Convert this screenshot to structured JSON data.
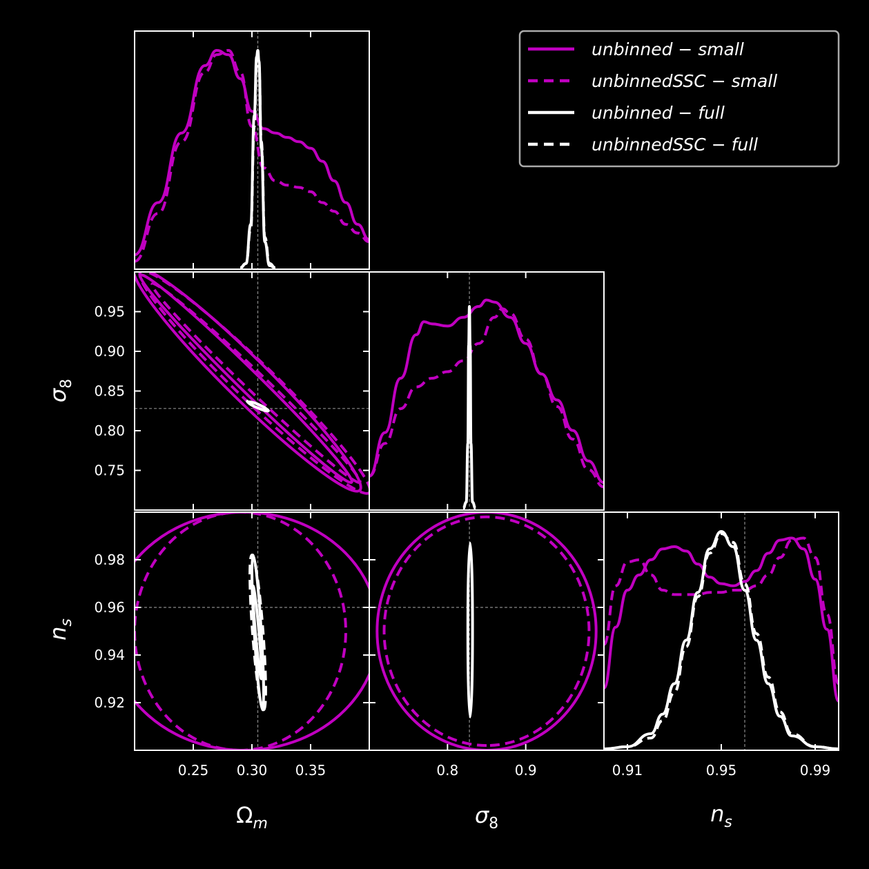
{
  "chart_data": {
    "type": "corner",
    "colors": {
      "small": "#c000c0",
      "full": "#ffffff",
      "background": "#000000",
      "reference": "#8a8a8a"
    },
    "parameters": [
      {
        "key": "om",
        "label": "Ω",
        "sub": "m",
        "range": [
          0.2,
          0.4
        ],
        "truth": 0.305,
        "ticks": [
          0.25,
          0.3,
          0.35
        ],
        "tick_labels": [
          "0.25",
          "0.30",
          "0.35"
        ]
      },
      {
        "key": "s8",
        "label": "σ",
        "sub": "8",
        "range": [
          0.7,
          1.0
        ],
        "truth": 0.828,
        "ticks": [
          0.75,
          0.8,
          0.85,
          0.9,
          0.95
        ],
        "tick_labels": [
          "0.75",
          "0.80",
          "0.85",
          "0.90",
          "0.95"
        ],
        "ticks_x": [
          0.8,
          0.9
        ],
        "tick_labels_x": [
          "0.8",
          "0.9"
        ]
      },
      {
        "key": "ns",
        "label": "n",
        "sub": "s",
        "range": [
          0.9,
          1.0
        ],
        "truth": 0.96,
        "ticks": [
          0.92,
          0.94,
          0.96,
          0.98
        ],
        "tick_labels": [
          "0.92",
          "0.94",
          "0.96",
          "0.98"
        ],
        "ticks_x": [
          0.91,
          0.95,
          0.99
        ],
        "tick_labels_x": [
          "0.91",
          "0.95",
          "0.99"
        ]
      }
    ],
    "legend": [
      {
        "label": "unbinned − small",
        "color": "small",
        "dash": false
      },
      {
        "label": "unbinnedSSC − small",
        "color": "small",
        "dash": true
      },
      {
        "label": "unbinned − full",
        "color": "full",
        "dash": false
      },
      {
        "label": "unbinnedSSC − full",
        "color": "full",
        "dash": true
      }
    ],
    "marginals": {
      "om": [
        {
          "name": "unbinned − small",
          "color": "small",
          "dash": false,
          "x": [
            0.2,
            0.22,
            0.24,
            0.26,
            0.27,
            0.28,
            0.29,
            0.3,
            0.31,
            0.32,
            0.33,
            0.34,
            0.35,
            0.36,
            0.37,
            0.38,
            0.39,
            0.4
          ],
          "y": [
            0.06,
            0.3,
            0.62,
            0.93,
            1.0,
            0.98,
            0.87,
            0.72,
            0.64,
            0.62,
            0.6,
            0.58,
            0.55,
            0.49,
            0.4,
            0.3,
            0.2,
            0.13
          ]
        },
        {
          "name": "unbinnedSSC − small",
          "color": "small",
          "dash": true,
          "x": [
            0.2,
            0.22,
            0.24,
            0.26,
            0.27,
            0.28,
            0.29,
            0.3,
            0.31,
            0.32,
            0.33,
            0.34,
            0.35,
            0.36,
            0.37,
            0.38,
            0.39,
            0.4
          ],
          "y": [
            0.03,
            0.25,
            0.58,
            0.9,
            0.98,
            1.0,
            0.9,
            0.65,
            0.46,
            0.4,
            0.38,
            0.37,
            0.35,
            0.3,
            0.26,
            0.2,
            0.16,
            0.12
          ]
        },
        {
          "name": "unbinned − full",
          "color": "full",
          "dash": false,
          "x": [
            0.29,
            0.295,
            0.299,
            0.302,
            0.304,
            0.305,
            0.306,
            0.308,
            0.311,
            0.315,
            0.32
          ],
          "y": [
            0.0,
            0.02,
            0.2,
            0.7,
            0.97,
            1.0,
            0.95,
            0.55,
            0.12,
            0.01,
            0.0
          ]
        },
        {
          "name": "unbinnedSSC − full",
          "color": "full",
          "dash": true,
          "x": [
            0.29,
            0.295,
            0.299,
            0.302,
            0.304,
            0.305,
            0.306,
            0.308,
            0.311,
            0.315,
            0.32
          ],
          "y": [
            0.0,
            0.02,
            0.18,
            0.65,
            0.93,
            0.98,
            0.93,
            0.58,
            0.14,
            0.02,
            0.0
          ]
        }
      ],
      "s8": [
        {
          "name": "unbinned − small",
          "color": "small",
          "dash": false,
          "x": [
            0.7,
            0.72,
            0.74,
            0.76,
            0.77,
            0.78,
            0.8,
            0.82,
            0.84,
            0.85,
            0.86,
            0.88,
            0.9,
            0.92,
            0.94,
            0.96,
            0.98,
            1.0
          ],
          "y": [
            0.15,
            0.35,
            0.6,
            0.8,
            0.86,
            0.85,
            0.84,
            0.88,
            0.93,
            0.96,
            0.95,
            0.88,
            0.76,
            0.62,
            0.5,
            0.36,
            0.22,
            0.12
          ]
        },
        {
          "name": "unbinnedSSC − small",
          "color": "small",
          "dash": true,
          "x": [
            0.7,
            0.72,
            0.74,
            0.76,
            0.78,
            0.8,
            0.82,
            0.84,
            0.86,
            0.87,
            0.88,
            0.9,
            0.92,
            0.94,
            0.96,
            0.98,
            1.0
          ],
          "y": [
            0.15,
            0.3,
            0.46,
            0.56,
            0.6,
            0.63,
            0.68,
            0.76,
            0.88,
            0.92,
            0.9,
            0.78,
            0.62,
            0.47,
            0.32,
            0.18,
            0.1
          ]
        },
        {
          "name": "unbinned − full",
          "color": "full",
          "dash": false,
          "x": [
            0.82,
            0.824,
            0.826,
            0.827,
            0.828,
            0.829,
            0.83,
            0.832,
            0.836
          ],
          "y": [
            0.0,
            0.03,
            0.3,
            0.75,
            0.93,
            0.75,
            0.3,
            0.03,
            0.0
          ]
        }
      ],
      "ns": [
        {
          "name": "unbinned − small",
          "color": "small",
          "dash": false,
          "x": [
            0.9,
            0.905,
            0.91,
            0.915,
            0.92,
            0.925,
            0.93,
            0.935,
            0.94,
            0.945,
            0.95,
            0.955,
            0.96,
            0.965,
            0.97,
            0.975,
            0.98,
            0.985,
            0.99,
            0.995,
            1.0
          ],
          "y": [
            0.28,
            0.56,
            0.73,
            0.8,
            0.87,
            0.92,
            0.93,
            0.91,
            0.85,
            0.79,
            0.76,
            0.75,
            0.77,
            0.82,
            0.9,
            0.96,
            0.97,
            0.92,
            0.78,
            0.55,
            0.22
          ]
        },
        {
          "name": "unbinnedSSC − small",
          "color": "small",
          "dash": true,
          "x": [
            0.9,
            0.905,
            0.91,
            0.915,
            0.92,
            0.925,
            0.93,
            0.935,
            0.94,
            0.945,
            0.95,
            0.955,
            0.96,
            0.965,
            0.97,
            0.975,
            0.98,
            0.985,
            0.99,
            0.995,
            1.0
          ],
          "y": [
            0.48,
            0.75,
            0.86,
            0.87,
            0.8,
            0.73,
            0.71,
            0.71,
            0.71,
            0.72,
            0.72,
            0.73,
            0.73,
            0.75,
            0.8,
            0.88,
            0.96,
            0.97,
            0.88,
            0.62,
            0.3
          ]
        },
        {
          "name": "unbinned − full",
          "color": "full",
          "dash": false,
          "x": [
            0.9,
            0.91,
            0.92,
            0.925,
            0.93,
            0.935,
            0.94,
            0.945,
            0.95,
            0.955,
            0.96,
            0.965,
            0.97,
            0.975,
            0.98,
            0.99,
            1.0
          ],
          "y": [
            0.0,
            0.01,
            0.07,
            0.16,
            0.3,
            0.5,
            0.72,
            0.92,
            1.0,
            0.93,
            0.73,
            0.5,
            0.3,
            0.15,
            0.06,
            0.01,
            0.0
          ]
        },
        {
          "name": "unbinnedSSC − full",
          "color": "full",
          "dash": true,
          "x": [
            0.9,
            0.91,
            0.92,
            0.925,
            0.93,
            0.935,
            0.94,
            0.945,
            0.95,
            0.955,
            0.96,
            0.965,
            0.97,
            0.975,
            0.98,
            0.99,
            1.0
          ],
          "y": [
            0.0,
            0.01,
            0.05,
            0.13,
            0.26,
            0.47,
            0.7,
            0.9,
            0.99,
            0.95,
            0.76,
            0.53,
            0.33,
            0.17,
            0.07,
            0.01,
            0.0
          ]
        }
      ]
    },
    "contours_2d": [
      {
        "x": "om",
        "y": "s8",
        "ellipses": [
          {
            "color": "small",
            "dash": false,
            "center": [
              0.305,
              0.857
            ],
            "endpoints": [
              [
                0.205,
                0.996
              ],
              [
                0.385,
                0.735
              ]
            ],
            "width_y": 0.022
          },
          {
            "color": "small",
            "dash": false,
            "center": [
              0.305,
              0.857
            ],
            "endpoints": [
              [
                0.2,
                1.005
              ],
              [
                0.392,
                0.725
              ]
            ],
            "width_y": 0.044
          },
          {
            "color": "small",
            "dash": true,
            "center": [
              0.31,
              0.85
            ],
            "endpoints": [
              [
                0.215,
                0.985
              ],
              [
                0.392,
                0.735
              ]
            ],
            "width_y": 0.02
          },
          {
            "color": "small",
            "dash": true,
            "center": [
              0.31,
              0.85
            ],
            "endpoints": [
              [
                0.205,
                1.0
              ],
              [
                0.4,
                0.722
              ]
            ],
            "width_y": 0.04
          },
          {
            "color": "full",
            "dash": false,
            "center": [
              0.305,
              0.831
            ],
            "endpoints": [
              [
                0.297,
                0.836
              ],
              [
                0.313,
                0.826
              ]
            ],
            "width_y": 0.0025
          },
          {
            "color": "full",
            "dash": true,
            "center": [
              0.305,
              0.831
            ],
            "endpoints": [
              [
                0.296,
                0.837
              ],
              [
                0.314,
                0.825
              ]
            ],
            "width_y": 0.0035
          }
        ]
      },
      {
        "x": "om",
        "y": "ns",
        "ellipses": [
          {
            "color": "small",
            "dash": false,
            "center": [
              0.293,
              0.95
            ],
            "endpoints": [
              [
                0.293,
                1.0
              ],
              [
                0.293,
                0.9
              ]
            ],
            "width_x": 0.23
          },
          {
            "color": "small",
            "dash": true,
            "center": [
              0.29,
              0.95
            ],
            "endpoints": [
              [
                0.29,
                1.0
              ],
              [
                0.29,
                0.9
              ]
            ],
            "width_x": 0.18
          },
          {
            "color": "full",
            "dash": false,
            "center": [
              0.304,
              0.95
            ],
            "endpoints": [
              [
                0.301,
                0.982
              ],
              [
                0.309,
                0.917
              ]
            ],
            "width_x": 0.006
          },
          {
            "color": "full",
            "dash": false,
            "center": [
              0.305,
              0.95
            ],
            "endpoints": [
              [
                0.301,
                0.969
              ],
              [
                0.308,
                0.93
              ]
            ],
            "width_x": 0.003
          },
          {
            "color": "full",
            "dash": true,
            "center": [
              0.305,
              0.95
            ],
            "endpoints": [
              [
                0.3,
                0.982
              ],
              [
                0.31,
                0.917
              ]
            ],
            "width_x": 0.009
          }
        ]
      },
      {
        "x": "s8",
        "y": "ns",
        "ellipses": [
          {
            "color": "small",
            "dash": false,
            "center": [
              0.85,
              0.95
            ],
            "endpoints": [
              [
                0.85,
                1.0
              ],
              [
                0.85,
                0.9
              ]
            ],
            "width_x": 0.28
          },
          {
            "color": "small",
            "dash": true,
            "center": [
              0.85,
              0.95
            ],
            "endpoints": [
              [
                0.85,
                0.998
              ],
              [
                0.85,
                0.902
              ]
            ],
            "width_x": 0.262
          },
          {
            "color": "full",
            "dash": false,
            "center": [
              0.829,
              0.95
            ],
            "endpoints": [
              [
                0.829,
                0.987
              ],
              [
                0.829,
                0.914
              ]
            ],
            "width_x": 0.006
          }
        ]
      }
    ]
  }
}
